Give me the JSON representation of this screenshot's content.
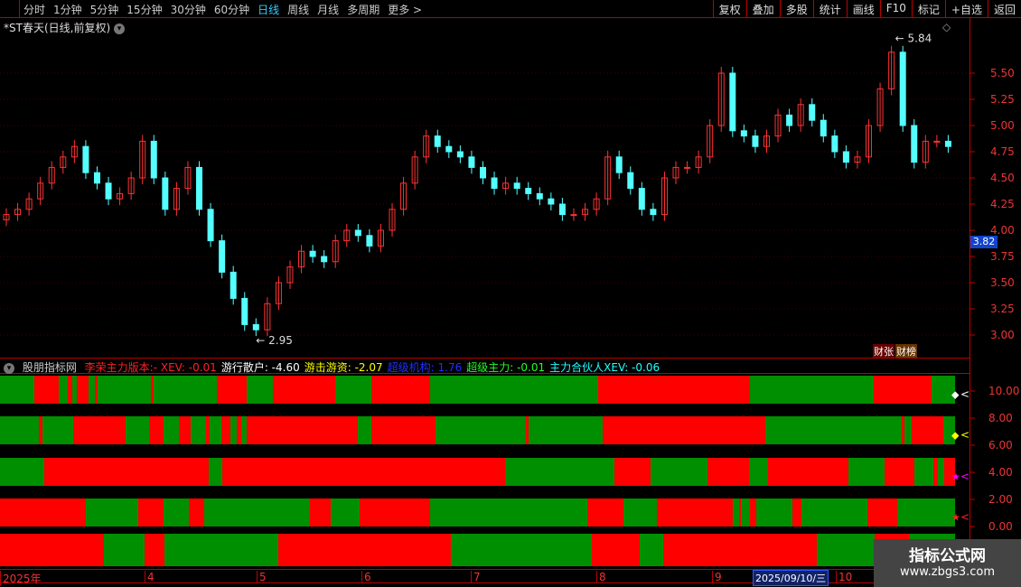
{
  "toolbar": {
    "periods": [
      "分时",
      "1分钟",
      "5分钟",
      "15分钟",
      "30分钟",
      "60分钟",
      "日线",
      "周线",
      "月线",
      "多周期",
      "更多 >"
    ],
    "active": "日线",
    "buttons": [
      "复权",
      "叠加",
      "多股",
      "统计",
      "画线",
      "F10",
      "标记",
      "+自选",
      "返回"
    ]
  },
  "chart": {
    "title": "*ST春天(日线,前复权)",
    "high_label": "5.84",
    "low_label": "2.95",
    "current_price": "3.82",
    "price_ticks": [
      "5.50",
      "5.25",
      "5.00",
      "4.75",
      "4.50",
      "4.25",
      "4.00",
      "3.75",
      "3.50",
      "3.25",
      "3.00"
    ],
    "badges": [
      "财张",
      "财榜"
    ],
    "closes": [
      4.15,
      4.2,
      4.3,
      4.45,
      4.6,
      4.7,
      4.8,
      4.55,
      4.45,
      4.3,
      4.35,
      4.5,
      4.85,
      4.5,
      4.2,
      4.4,
      4.6,
      4.2,
      3.9,
      3.6,
      3.35,
      3.1,
      3.05,
      3.3,
      3.5,
      3.65,
      3.8,
      3.75,
      3.7,
      3.9,
      4.0,
      3.95,
      3.85,
      4.0,
      4.2,
      4.45,
      4.7,
      4.9,
      4.8,
      4.75,
      4.7,
      4.6,
      4.5,
      4.4,
      4.45,
      4.4,
      4.35,
      4.3,
      4.25,
      4.15,
      4.15,
      4.2,
      4.3,
      4.7,
      4.55,
      4.4,
      4.2,
      4.15,
      4.5,
      4.6,
      4.6,
      4.7,
      5.0,
      5.5,
      4.95,
      4.9,
      4.8,
      4.9,
      5.1,
      5.0,
      5.2,
      5.05,
      4.9,
      4.75,
      4.65,
      4.7,
      5.0,
      5.35,
      5.7,
      5.0,
      4.65,
      4.85,
      4.85,
      4.8
    ],
    "colors": {
      "up": "#ff3232",
      "down": "#54ffff"
    }
  },
  "indicator": {
    "name": "股朋指标网",
    "items": [
      {
        "label": "李荣主力版本:- XEV: -0.01",
        "color": "#ff2020"
      },
      {
        "label": "游行散户: -4.60",
        "color": "#ffffff"
      },
      {
        "label": "游击游资: -2.07",
        "color": "#ffff00"
      },
      {
        "label": "超级机构: 1.76",
        "color": "#2030ff"
      },
      {
        "label": "超级主力: -0.01",
        "color": "#20ff20"
      },
      {
        "label": "主力合伙人XEV: -0.06",
        "color": "#20ffff"
      }
    ],
    "ticks": [
      "10.00",
      "8.00",
      "6.00",
      "4.00",
      "2.00",
      "0.00"
    ],
    "band_colors": {
      "red": "#ff0000",
      "green": "#008f00"
    }
  },
  "xaxis": {
    "labels": [
      "2025年",
      "4",
      "5",
      "6",
      "7",
      "8",
      "9",
      "10"
    ],
    "cursor_date": "2025/09/10/三"
  },
  "watermark": {
    "line1": "指标公式网",
    "line2": "www.zbgs3.com"
  }
}
